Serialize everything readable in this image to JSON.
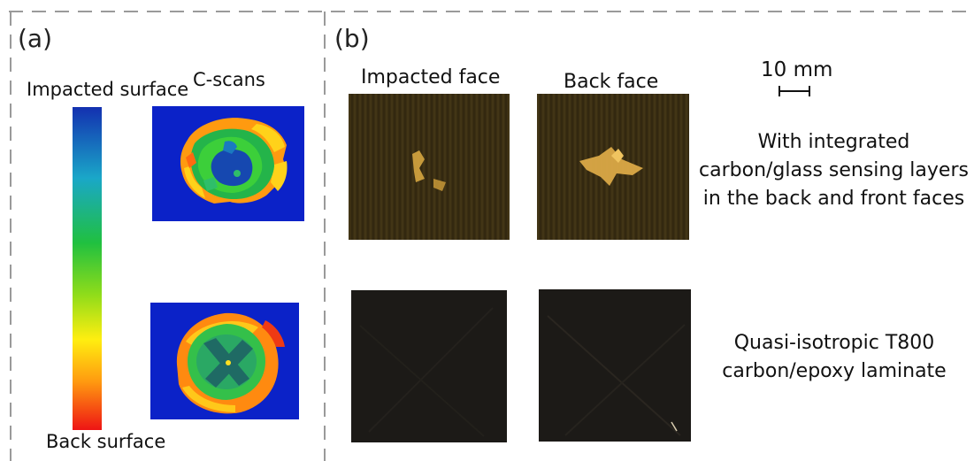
{
  "panels": {
    "a": {
      "label": "(a)",
      "colorbar": {
        "top_label": "Impacted surface",
        "bottom_label": "Back surface",
        "colors": [
          "#1330b0",
          "#1aa7c8",
          "#20c040",
          "#8fdc1a",
          "#ffee10",
          "#ff9a10",
          "#ee1414"
        ]
      },
      "cscans_title": "C-scans"
    },
    "b": {
      "label": "(b)",
      "scale_bar": "10 mm",
      "columns": [
        "Impacted face",
        "Back face"
      ],
      "rows": [
        {
          "description_lines": [
            "With integrated",
            "carbon/glass sensing layers",
            "in the back and front faces"
          ]
        },
        {
          "description_lines": [
            "Quasi-isotropic T800",
            "carbon/epoxy laminate"
          ]
        }
      ]
    }
  },
  "colors": {
    "cscan_background": "#0b22c8",
    "dashed_border": "#9a9a9a",
    "laminate_dark": "#1c1a17",
    "sensing_brown": "#3a2e12",
    "damage_yellow": "#d7a640"
  }
}
